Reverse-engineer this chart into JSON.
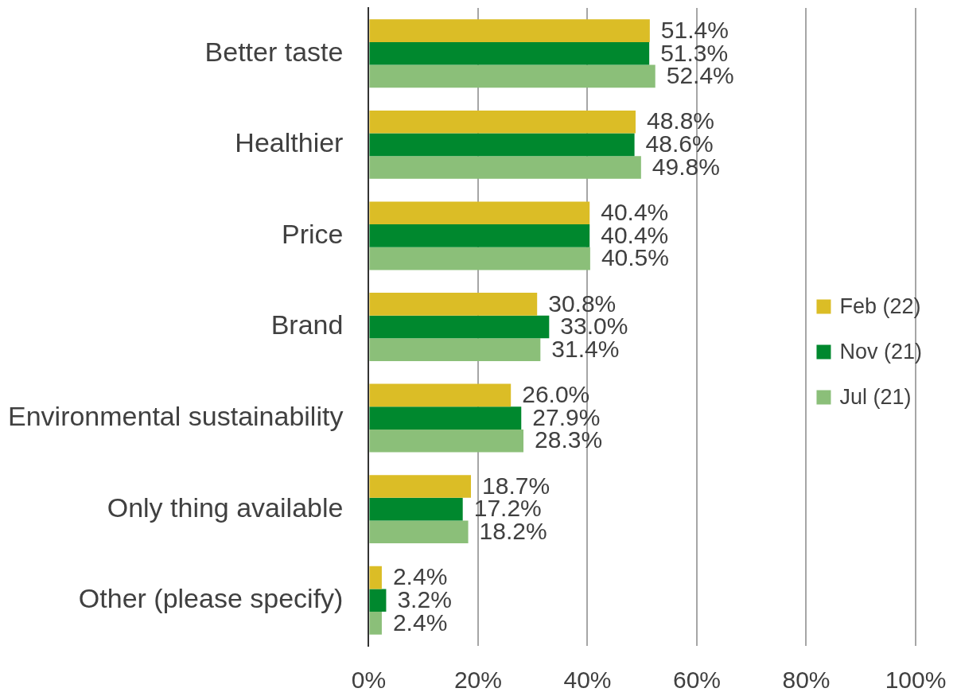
{
  "chart_data": {
    "type": "bar",
    "orientation": "horizontal",
    "categories": [
      "Better taste",
      "Healthier",
      "Price",
      "Brand",
      "Environmental sustainability",
      "Only thing available",
      "Other (please specify)"
    ],
    "series": [
      {
        "name": "Feb (22)",
        "color": "#dbbd26",
        "values": [
          51.4,
          48.8,
          40.4,
          30.8,
          26.0,
          18.7,
          2.4
        ],
        "value_labels": [
          "51.4%",
          "48.8%",
          "40.4%",
          "30.8%",
          "26.0%",
          "18.7%",
          "2.4%"
        ]
      },
      {
        "name": "Nov (21)",
        "color": "#00882e",
        "values": [
          51.3,
          48.6,
          40.4,
          33.0,
          27.9,
          17.2,
          3.2
        ],
        "value_labels": [
          "51.3%",
          "48.6%",
          "40.4%",
          "33.0%",
          "27.9%",
          "17.2%",
          "3.2%"
        ]
      },
      {
        "name": "Jul (21)",
        "color": "#8bbf79",
        "values": [
          52.4,
          49.8,
          40.5,
          31.4,
          28.3,
          18.2,
          2.4
        ],
        "value_labels": [
          "52.4%",
          "49.8%",
          "40.5%",
          "31.4%",
          "28.3%",
          "18.2%",
          "2.4%"
        ]
      }
    ],
    "xlim": [
      0,
      100
    ],
    "xticks": [
      {
        "value": 0,
        "label": "0%"
      },
      {
        "value": 20,
        "label": "20%"
      },
      {
        "value": 40,
        "label": "40%"
      },
      {
        "value": 60,
        "label": "60%"
      },
      {
        "value": 80,
        "label": "80%"
      },
      {
        "value": 100,
        "label": "100%"
      }
    ],
    "grid": "x",
    "legend": "right"
  }
}
